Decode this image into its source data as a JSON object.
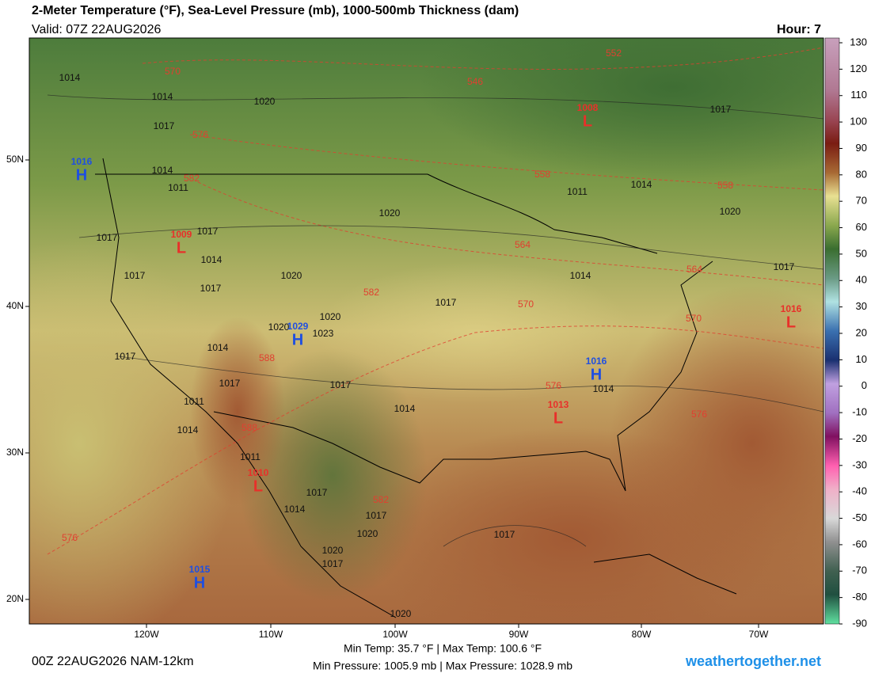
{
  "header": {
    "title": "2-Meter Temperature (°F), Sea-Level Pressure (mb), 1000-500mb Thickness (dam)",
    "valid": "Valid: 07Z 22AUG2026",
    "hour": "Hour: 7"
  },
  "colorbar": {
    "ticks": [
      130,
      120,
      110,
      100,
      90,
      80,
      70,
      60,
      50,
      40,
      30,
      20,
      10,
      0,
      -10,
      -20,
      -30,
      -40,
      -50,
      -60,
      -70,
      -80,
      -90
    ]
  },
  "axes": {
    "lon": [
      "120W",
      "110W",
      "100W",
      "90W",
      "80W",
      "70W"
    ],
    "lat": [
      "50N",
      "40N",
      "30N",
      "20N"
    ]
  },
  "centers": [
    {
      "letter": "H",
      "pressure": "1016"
    },
    {
      "letter": "L",
      "pressure": "1008"
    },
    {
      "letter": "L",
      "pressure": "1009"
    },
    {
      "letter": "H",
      "pressure": "1029"
    },
    {
      "letter": "L",
      "pressure": "1016"
    },
    {
      "letter": "H",
      "pressure": "1016"
    },
    {
      "letter": "L",
      "pressure": "1013"
    },
    {
      "letter": "L",
      "pressure": "1010"
    },
    {
      "letter": "H",
      "pressure": "1015"
    }
  ],
  "isobar_labels": [
    "1014",
    "1014",
    "1020",
    "1017",
    "1017",
    "1014",
    "1011",
    "1011",
    "1014",
    "1020",
    "1020",
    "1017",
    "1017",
    "1014",
    "1017",
    "1020",
    "1014",
    "1017",
    "1017",
    "1017",
    "1020",
    "1020",
    "1023",
    "1014",
    "1017",
    "1017",
    "1017",
    "1014",
    "1011",
    "1014",
    "1014",
    "1011",
    "1017",
    "1014",
    "1017",
    "1020",
    "1017",
    "1020",
    "1017",
    "1020"
  ],
  "thickness_labels": [
    "570",
    "552",
    "546",
    "576",
    "582",
    "558",
    "558",
    "564",
    "564",
    "582",
    "570",
    "570",
    "588",
    "576",
    "576",
    "588",
    "582",
    "576"
  ],
  "footer": {
    "run": "00Z 22AUG2026 NAM-12km",
    "temps": "Min Temp:  35.7 °F | Max Temp: 100.6 °F",
    "pressures": "Min Pressure: 1005.9 mb | Max Pressure: 1028.9 mb",
    "site": "weathertogether.net"
  }
}
